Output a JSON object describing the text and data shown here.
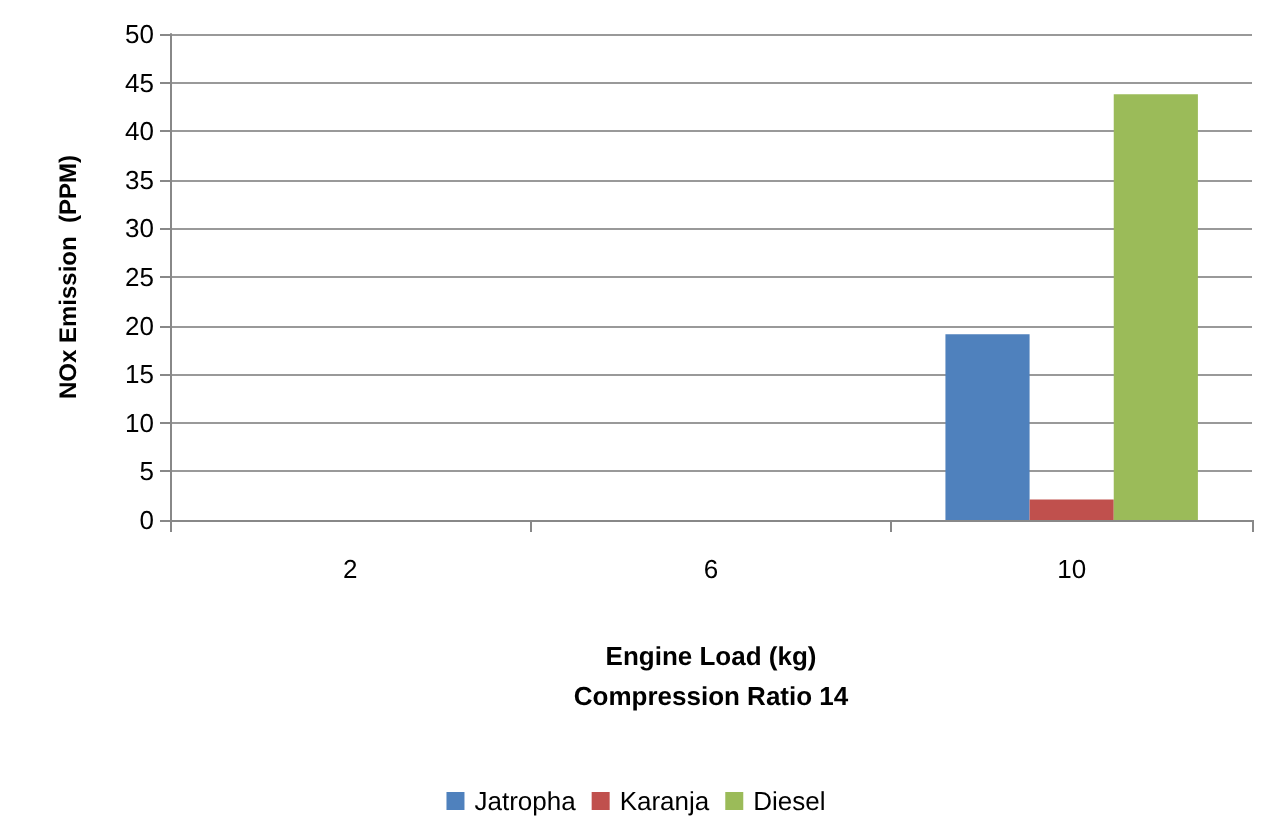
{
  "chart_data": {
    "type": "bar",
    "xlabel": "Engine Load (kg)\nCompression Ratio 14",
    "ylabel": "NOx Emission  (PPM)",
    "categories": [
      "2",
      "6",
      "10"
    ],
    "series": [
      {
        "name": "Jatropha",
        "color": "#4f81bd",
        "values": [
          null,
          null,
          19.1
        ]
      },
      {
        "name": "Karanja",
        "color": "#c0504d",
        "values": [
          null,
          null,
          2.1
        ]
      },
      {
        "name": "Diesel",
        "color": "#9bbb59",
        "values": [
          null,
          null,
          43.8
        ]
      }
    ],
    "ylim": [
      0,
      50
    ],
    "yticks": [
      0,
      5,
      10,
      15,
      20,
      25,
      30,
      35,
      40,
      45,
      50
    ],
    "grid": "y",
    "legend": "bottom"
  }
}
